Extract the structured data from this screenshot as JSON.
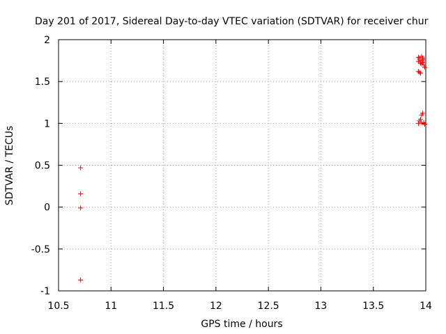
{
  "chart_data": {
    "type": "scatter",
    "title": "Day 201 of 2017, Sidereal Day-to-day VTEC variation (SDTVAR) for receiver chur",
    "xlabel": "GPS time / hours",
    "ylabel": "SDTVAR / TECUs",
    "xlim": [
      10.5,
      14
    ],
    "ylim": [
      -1,
      2
    ],
    "grid": true,
    "xticks": [
      10.5,
      11,
      11.5,
      12,
      12.5,
      13,
      13.5,
      14
    ],
    "yticks": [
      -1,
      -0.5,
      0,
      0.5,
      1,
      1.5,
      2
    ],
    "xtick_labels": [
      "10.5",
      "11",
      "11.5",
      "12",
      "12.5",
      "13",
      "13.5",
      "14"
    ],
    "ytick_labels": [
      "-1",
      "-0.5",
      "0",
      "0.5",
      "1",
      "1.5",
      "2"
    ],
    "marker_color": "#ff0000",
    "marker": "plus",
    "series": [
      {
        "name": "SDTVAR",
        "points": [
          [
            10.71,
            0.47
          ],
          [
            10.71,
            0.16
          ],
          [
            10.71,
            -0.01
          ],
          [
            10.71,
            -0.87
          ],
          [
            13.93,
            1.79
          ],
          [
            13.94,
            1.78
          ],
          [
            13.94,
            1.76
          ],
          [
            13.93,
            1.74
          ],
          [
            13.95,
            1.72
          ],
          [
            13.96,
            1.8
          ],
          [
            13.97,
            1.78
          ],
          [
            13.96,
            1.75
          ],
          [
            13.98,
            1.76
          ],
          [
            13.97,
            1.73
          ],
          [
            13.96,
            1.71
          ],
          [
            13.98,
            1.7
          ],
          [
            13.99,
            1.67
          ],
          [
            13.94,
            1.61
          ],
          [
            13.95,
            1.6
          ],
          [
            13.93,
            1.62
          ],
          [
            13.97,
            1.12
          ],
          [
            13.96,
            1.1
          ],
          [
            13.95,
            1.05
          ],
          [
            13.94,
            1.03
          ],
          [
            13.93,
            1.0
          ],
          [
            13.96,
            1.01
          ],
          [
            13.98,
            1.01
          ],
          [
            13.99,
            0.99
          ]
        ]
      }
    ]
  }
}
